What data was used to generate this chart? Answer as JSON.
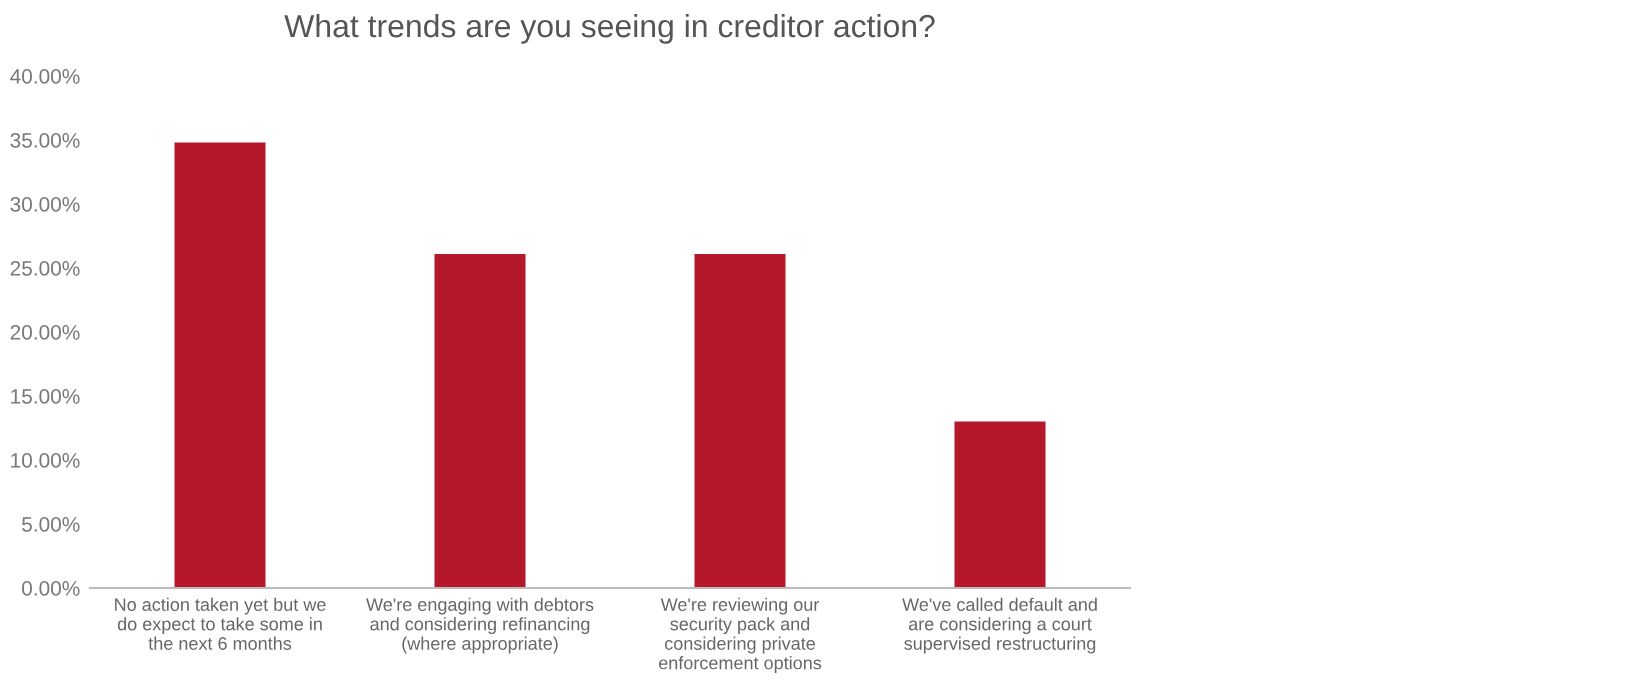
{
  "chart_data": {
    "type": "bar",
    "title": "What trends are you seeing in creditor action?",
    "categories": [
      "No action taken yet but we do expect to take some in the next 6 months",
      "We're engaging with debtors and considering refinancing (where appropriate)",
      "We're reviewing our security pack and considering private enforcement options",
      "We've called default and are considering a court supervised restructuring"
    ],
    "values": [
      34.8,
      26.1,
      26.1,
      13.0
    ],
    "color": "#b5172b",
    "ylim": [
      0,
      40
    ],
    "yticks": [
      {
        "value": 0,
        "label": "0.00%"
      },
      {
        "value": 5,
        "label": "5.00%"
      },
      {
        "value": 10,
        "label": "10.00%"
      },
      {
        "value": 15,
        "label": "15.00%"
      },
      {
        "value": 20,
        "label": "20.00%"
      },
      {
        "value": 25,
        "label": "25.00%"
      },
      {
        "value": 30,
        "label": "30.00%"
      },
      {
        "value": 35,
        "label": "35.00%"
      },
      {
        "value": 40,
        "label": "40.00%"
      }
    ],
    "grid": false
  }
}
